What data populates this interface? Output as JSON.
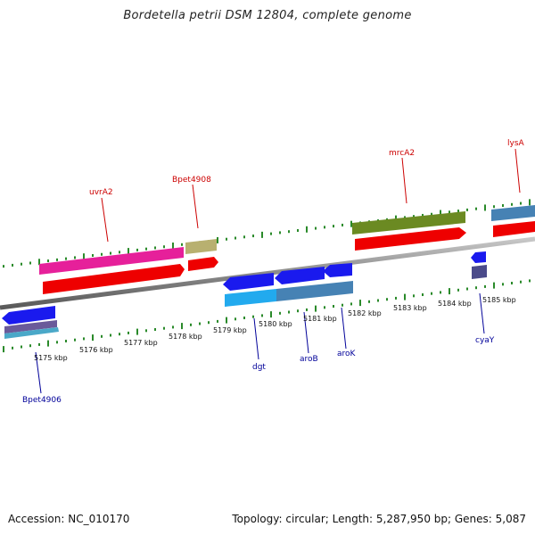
{
  "title": "Bordetella petrii DSM 12804, complete genome",
  "footer": {
    "accession": "Accession: NC_010170",
    "topology": "Topology: circular; Length: 5,287,950 bp; Genes: 5,087"
  },
  "colors": {
    "ruler_tick": "#2a8a2a",
    "backbone": "#8c8c8c",
    "label_forward": "#cc0000",
    "label_reverse": "#000099"
  },
  "scale_labels": [
    "5175 kbp",
    "5176 kbp",
    "5177 kbp",
    "5178 kbp",
    "5179 kbp",
    "5180 kbp",
    "5181 kbp",
    "5182 kbp",
    "5183 kbp",
    "5184 kbp",
    "5185 kbp"
  ],
  "gene_labels": {
    "uvrA2": "uvrA2",
    "Bpet4908": "Bpet4908",
    "mrcA2": "mrcA2",
    "lysA": "lysA",
    "dgt": "dgt",
    "aroB": "aroB",
    "aroK": "aroK",
    "cyaY": "cyaY",
    "Bpet4906": "Bpet4906"
  }
}
